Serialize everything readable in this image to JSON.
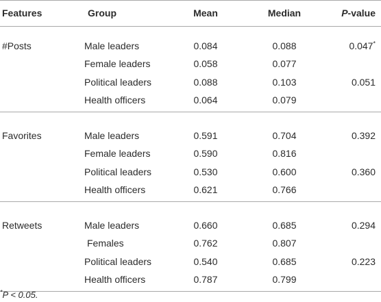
{
  "table": {
    "headers": [
      "Features",
      "Group",
      "Mean",
      "Median",
      {
        "italic": "P",
        "rest": "-value"
      }
    ],
    "sections": [
      {
        "feature": "#Posts",
        "rows": [
          {
            "group": "Male leaders",
            "mean": "0.084",
            "median": "0.088",
            "p": {
              "text": "0.047",
              "sup": "*"
            }
          },
          {
            "group": "Female leaders",
            "mean": "0.058",
            "median": "0.077"
          },
          {
            "group": "Political leaders",
            "mean": "0.088",
            "median": "0.103",
            "p": {
              "text": "0.051"
            }
          },
          {
            "group": "Health officers",
            "mean": "0.064",
            "median": "0.079"
          }
        ]
      },
      {
        "feature": "Favorites",
        "rows": [
          {
            "group": "Male leaders",
            "mean": "0.591",
            "median": "0.704",
            "p": {
              "text": "0.392"
            }
          },
          {
            "group": "Female leaders",
            "mean": "0.590",
            "median": "0.816"
          },
          {
            "group": "Political leaders",
            "mean": "0.530",
            "median": "0.600",
            "p": {
              "text": "0.360"
            }
          },
          {
            "group": "Health officers",
            "mean": "0.621",
            "median": "0.766"
          }
        ]
      },
      {
        "feature": "Retweets",
        "rows": [
          {
            "group": "Male leaders",
            "mean": "0.660",
            "median": "0.685",
            "p": {
              "text": "0.294"
            }
          },
          {
            "group": "Females",
            "mean": "0.762",
            "median": "0.807"
          },
          {
            "group": "Political leaders",
            "mean": "0.540",
            "median": "0.685",
            "p": {
              "text": "0.223"
            }
          },
          {
            "group": "Health officers",
            "mean": "0.787",
            "median": "0.799"
          }
        ]
      }
    ],
    "footnote": {
      "sup": "*",
      "text": "P < 0.05."
    }
  }
}
